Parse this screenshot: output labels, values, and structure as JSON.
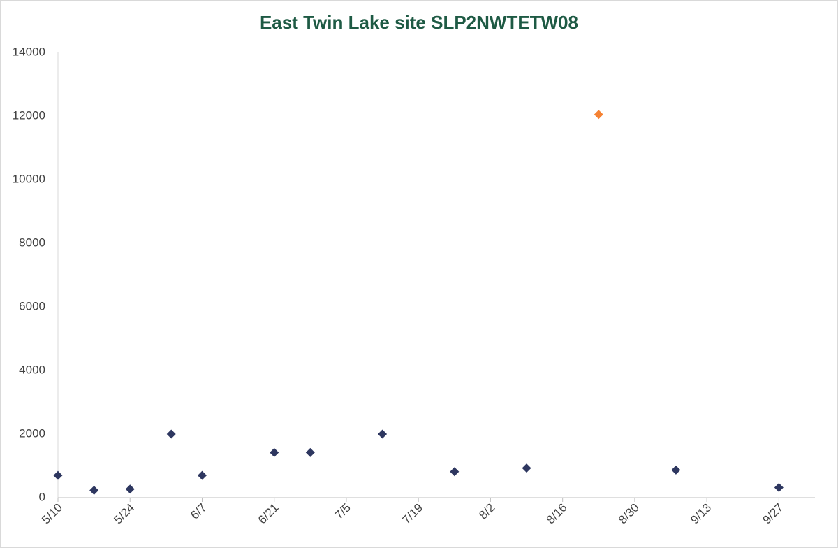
{
  "chart_data": {
    "type": "scatter",
    "title": "East Twin Lake site SLP2NWTETW08",
    "x": [
      "5/10",
      "5/17",
      "5/24",
      "6/1",
      "6/7",
      "6/21",
      "6/28",
      "7/12",
      "7/26",
      "8/9",
      "8/23",
      "9/7",
      "9/27"
    ],
    "values": [
      700,
      230,
      270,
      2000,
      700,
      1420,
      1420,
      2000,
      820,
      930,
      12050,
      870,
      320
    ],
    "colors": [
      "#2e3760",
      "#2e3760",
      "#2e3760",
      "#2e3760",
      "#2e3760",
      "#2e3760",
      "#2e3760",
      "#2e3760",
      "#2e3760",
      "#2e3760",
      "#f58233",
      "#2e3760",
      "#2e3760"
    ],
    "xlim": [
      "5/10",
      "10/4"
    ],
    "xticks": [
      "5/10",
      "5/24",
      "6/7",
      "6/21",
      "7/5",
      "7/19",
      "8/2",
      "8/16",
      "8/30",
      "9/13",
      "9/27"
    ],
    "ylim": [
      0,
      14000
    ],
    "yticks": [
      0,
      2000,
      4000,
      6000,
      8000,
      10000,
      12000,
      14000
    ],
    "grid": false
  }
}
